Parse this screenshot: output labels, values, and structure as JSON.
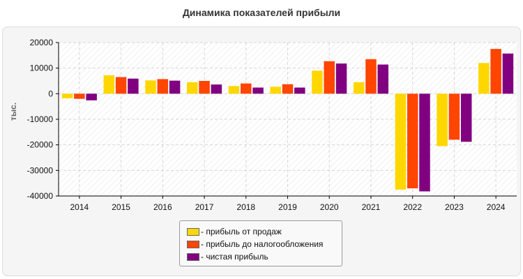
{
  "chart_data": {
    "type": "bar",
    "title": "Динамика показателей прибыли",
    "ylabel": "тыс.",
    "xlabel": "",
    "categories": [
      "2014",
      "2015",
      "2016",
      "2017",
      "2018",
      "2019",
      "2020",
      "2021",
      "2022",
      "2023",
      "2024"
    ],
    "ylim": [
      -40000,
      20000
    ],
    "yticks": [
      20000,
      10000,
      0,
      -10000,
      -20000,
      -30000,
      -40000
    ],
    "grid": true,
    "legend_position": "bottom-center",
    "series": [
      {
        "name": "- прибыль от продаж",
        "color": "#FFD700",
        "values": [
          -1800,
          7200,
          5200,
          4500,
          3000,
          2700,
          9000,
          4500,
          -37500,
          -20500,
          12000
        ]
      },
      {
        "name": "- прибыль до налогообложения",
        "color": "#FF4500",
        "values": [
          -2000,
          6500,
          5700,
          5000,
          4000,
          3700,
          12700,
          13500,
          -37000,
          -18000,
          17500
        ]
      },
      {
        "name": "- чистая прибыль",
        "color": "#800080",
        "values": [
          -2600,
          5900,
          5100,
          3600,
          2400,
          2400,
          11800,
          11400,
          -38200,
          -18800,
          15700
        ]
      }
    ]
  }
}
